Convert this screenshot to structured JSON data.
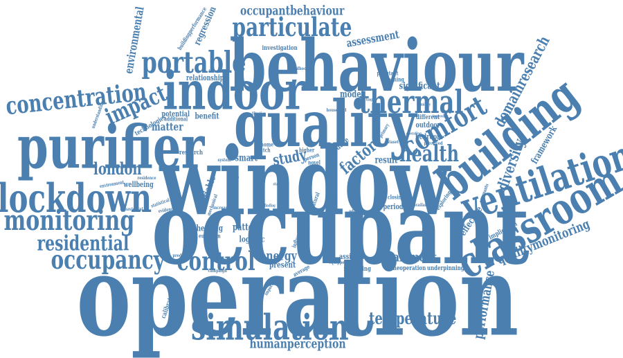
{
  "colors": {
    "word": "#4a7fb0",
    "background": "#ffffff"
  },
  "words": [
    {
      "text": "operation",
      "weight": 1.0
    },
    {
      "text": "occupant",
      "weight": 0.96
    },
    {
      "text": "window",
      "weight": 0.96
    },
    {
      "text": "behaviour",
      "weight": 0.78
    },
    {
      "text": "quality",
      "weight": 0.72
    },
    {
      "text": "purifier",
      "weight": 0.7
    },
    {
      "text": "indoor",
      "weight": 0.63
    },
    {
      "text": "building",
      "weight": 0.55
    },
    {
      "text": "classroom",
      "weight": 0.5
    },
    {
      "text": "ventilation",
      "weight": 0.48
    },
    {
      "text": "lockdown",
      "weight": 0.48
    },
    {
      "text": "simulation",
      "weight": 0.48
    },
    {
      "text": "thermal",
      "weight": 0.42
    },
    {
      "text": "monitoring",
      "weight": 0.4
    },
    {
      "text": "portable",
      "weight": 0.4
    },
    {
      "text": "comfort",
      "weight": 0.38
    },
    {
      "text": "particulate",
      "weight": 0.36
    },
    {
      "text": "concentration",
      "weight": 0.34
    },
    {
      "text": "control",
      "weight": 0.36
    },
    {
      "text": "occupancy",
      "weight": 0.34
    },
    {
      "text": "residential",
      "weight": 0.3
    },
    {
      "text": "health",
      "weight": 0.3
    },
    {
      "text": "impact",
      "weight": 0.3
    },
    {
      "text": "temperature",
      "weight": 0.24
    },
    {
      "text": "london",
      "weight": 0.24
    },
    {
      "text": "diversity",
      "weight": 0.2
    },
    {
      "text": "domainresearch",
      "weight": 0.2
    },
    {
      "text": "qualitymonitoring",
      "weight": 0.2
    },
    {
      "text": "performance",
      "weight": 0.2
    },
    {
      "text": "humanperception",
      "weight": 0.2
    },
    {
      "text": "occupantbehaviour",
      "weight": 0.2
    },
    {
      "text": "apartment",
      "weight": 0.2
    },
    {
      "text": "energy",
      "weight": 0.2
    },
    {
      "text": "study",
      "weight": 0.2
    },
    {
      "text": "factor",
      "weight": 0.2
    },
    {
      "text": "matter",
      "weight": 0.16
    },
    {
      "text": "assessment",
      "weight": 0.16
    },
    {
      "text": "environmental",
      "weight": 0.16
    },
    {
      "text": "regression",
      "weight": 0.14
    },
    {
      "text": "model",
      "weight": 0.14
    },
    {
      "text": "significant",
      "weight": 0.14
    },
    {
      "text": "exposure",
      "weight": 0.14
    },
    {
      "text": "effective",
      "weight": 0.14
    },
    {
      "text": "framework",
      "weight": 0.12
    },
    {
      "text": "pattern",
      "weight": 0.12
    },
    {
      "text": "logistic",
      "weight": 0.12
    },
    {
      "text": "smart",
      "weight": 0.12
    },
    {
      "text": "result",
      "weight": 0.12
    },
    {
      "text": "variable",
      "weight": 0.12
    },
    {
      "text": "heating",
      "weight": 0.12
    },
    {
      "text": "present",
      "weight": 0.12
    },
    {
      "text": "wellbeing",
      "weight": 0.1
    },
    {
      "text": "benefit",
      "weight": 0.1
    },
    {
      "text": "outdoor",
      "weight": 0.1
    },
    {
      "text": "different",
      "weight": 0.1
    },
    {
      "text": "bedroom",
      "weight": 0.1
    },
    {
      "text": "period",
      "weight": 0.1
    },
    {
      "text": "assisted",
      "weight": 0.1
    },
    {
      "text": "modelling",
      "weight": 0.1
    },
    {
      "text": "theoperation",
      "weight": 0.08
    },
    {
      "text": "underpinning",
      "weight": 0.08
    },
    {
      "text": "relationship",
      "weight": 0.1
    },
    {
      "text": "investigation",
      "weight": 0.08
    },
    {
      "text": "potential",
      "weight": 0.1
    },
    {
      "text": "additional",
      "weight": 0.08
    },
    {
      "text": "technologies",
      "weight": 0.08
    },
    {
      "text": "buildingperformance",
      "weight": 0.08
    },
    {
      "text": "research",
      "weight": 0.08
    },
    {
      "text": "implication",
      "weight": 0.08
    },
    {
      "text": "calibrated",
      "weight": 0.1
    },
    {
      "text": "european",
      "weight": 0.08
    },
    {
      "text": "environment",
      "weight": 0.07
    },
    {
      "text": "behavioural",
      "weight": 0.07
    },
    {
      "text": "residence",
      "weight": 0.06
    },
    {
      "text": "understanding",
      "weight": 0.06
    },
    {
      "text": "opening",
      "weight": 0.08
    },
    {
      "text": "pollutant",
      "weight": 0.08
    },
    {
      "text": "exploring",
      "weight": 0.08
    },
    {
      "text": "occupants",
      "weight": 0.07
    },
    {
      "text": "closing",
      "weight": 0.07
    },
    {
      "text": "increase",
      "weight": 0.07
    },
    {
      "text": "statistical",
      "weight": 0.06
    },
    {
      "text": "evidence",
      "weight": 0.07
    },
    {
      "text": "predicting",
      "weight": 0.06
    },
    {
      "text": "campaign",
      "weight": 0.06
    },
    {
      "text": "equipped",
      "weight": 0.06
    },
    {
      "text": "average",
      "weight": 0.07
    },
    {
      "text": "important",
      "weight": 0.06
    },
    {
      "text": "influencing",
      "weight": 0.07
    },
    {
      "text": "mechanical",
      "weight": 0.06
    },
    {
      "text": "natural",
      "weight": 0.07
    },
    {
      "text": "switch",
      "weight": 0.07
    },
    {
      "text": "home",
      "weight": 0.07
    },
    {
      "text": "higher",
      "weight": 0.07
    },
    {
      "text": "person",
      "weight": 0.07
    },
    {
      "text": "reduce",
      "weight": 0.08
    },
    {
      "text": "dataset",
      "weight": 0.06
    },
    {
      "text": "perceived",
      "weight": 0.06
    },
    {
      "text": "household",
      "weight": 0.06
    },
    {
      "text": "childhood",
      "weight": 0.05
    },
    {
      "text": "information",
      "weight": 0.05
    },
    {
      "text": "available",
      "weight": 0.05
    },
    {
      "text": "adaptive",
      "weight": 0.05
    },
    {
      "text": "novel",
      "weight": 0.06
    },
    {
      "text": "primary",
      "weight": 0.06
    },
    {
      "text": "operating",
      "weight": 0.05
    },
    {
      "text": "improving",
      "weight": 0.05
    },
    {
      "text": "affecting",
      "weight": 0.05
    },
    {
      "text": "system",
      "weight": 0.06
    },
    {
      "text": "analysis",
      "weight": 0.05
    },
    {
      "text": "based",
      "weight": 0.05
    },
    {
      "text": "state",
      "weight": 0.05
    },
    {
      "text": "finding",
      "weight": 0.05
    },
    {
      "text": "strategies",
      "weight": 0.05
    },
    {
      "text": "humidity",
      "weight": 0.05
    },
    {
      "text": "filtration",
      "weight": 0.04
    }
  ]
}
